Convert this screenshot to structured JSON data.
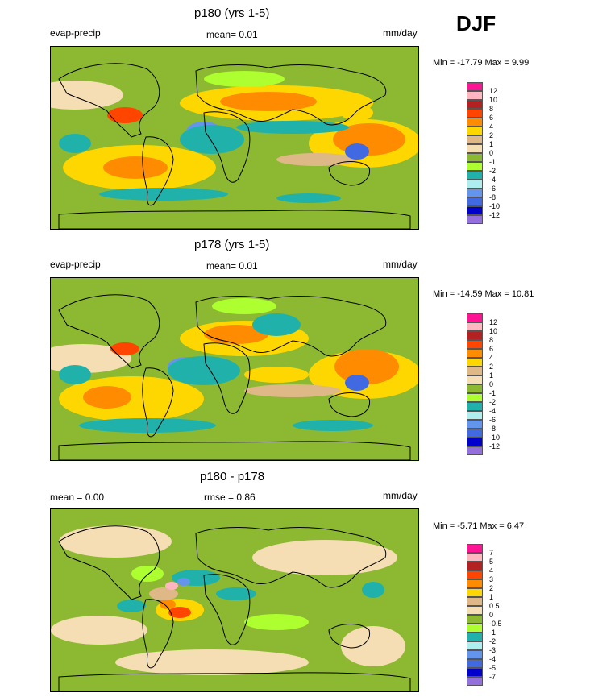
{
  "header": {
    "season": "DJF"
  },
  "colors": {
    "ocean_base": "#8DB832",
    "land_line": "#000000",
    "scale12": [
      "#FF1493",
      "#FFB6C1",
      "#B22222",
      "#FF4500",
      "#FF8C00",
      "#FFD700",
      "#DEB887",
      "#F5DEB3",
      "#8DB832",
      "#ADFF2F",
      "#20B2AA",
      "#AFEEEE",
      "#6495ED",
      "#4169E1",
      "#0000CD",
      "#9370DB"
    ]
  },
  "panels": [
    {
      "title": "p180 (yrs 1-5)",
      "left_label": "evap-precip",
      "mid_label": "mean=  0.01",
      "units": "mm/day",
      "minmax": "Min = -17.79 Max =   9.99",
      "legend_ticks": [
        "12",
        "10",
        "8",
        "6",
        "4",
        "2",
        "1",
        "0",
        "-1",
        "-2",
        "-4",
        "-6",
        "-8",
        "-10",
        "-12"
      ]
    },
    {
      "title": "p178 (yrs 1-5)",
      "left_label": "evap-precip",
      "mid_label": "mean=  0.01",
      "units": "mm/day",
      "minmax": "Min = -14.59 Max =  10.81",
      "legend_ticks": [
        "12",
        "10",
        "8",
        "6",
        "4",
        "2",
        "1",
        "0",
        "-1",
        "-2",
        "-4",
        "-6",
        "-8",
        "-10",
        "-12"
      ]
    },
    {
      "title": "p180 - p178",
      "left_label": "mean =   0.00",
      "mid_label": "rmse =   0.86",
      "units": "mm/day",
      "minmax": "Min =  -5.71 Max =   6.47",
      "legend_ticks": [
        "7",
        "5",
        "4",
        "3",
        "2",
        "1",
        "0.5",
        "0",
        "-0.5",
        "-1",
        "-2",
        "-3",
        "-4",
        "-5",
        "-7"
      ]
    }
  ],
  "chart_data": [
    {
      "type": "heatmap",
      "title": "p180 (yrs 1-5)",
      "variable": "evap-precip",
      "units": "mm/day",
      "mean": 0.01,
      "min": -17.79,
      "max": 9.99,
      "levels": [
        -12,
        -10,
        -8,
        -6,
        -4,
        -2,
        -1,
        0,
        1,
        2,
        4,
        6,
        8,
        10,
        12
      ],
      "season": "DJF"
    },
    {
      "type": "heatmap",
      "title": "p178 (yrs 1-5)",
      "variable": "evap-precip",
      "units": "mm/day",
      "mean": 0.01,
      "min": -14.59,
      "max": 10.81,
      "levels": [
        -12,
        -10,
        -8,
        -6,
        -4,
        -2,
        -1,
        0,
        1,
        2,
        4,
        6,
        8,
        10,
        12
      ],
      "season": "DJF"
    },
    {
      "type": "heatmap",
      "title": "p180 - p178",
      "units": "mm/day",
      "mean": 0.0,
      "rmse": 0.86,
      "min": -5.71,
      "max": 6.47,
      "levels": [
        -7,
        -5,
        -4,
        -3,
        -2,
        -1,
        -0.5,
        0,
        0.5,
        1,
        2,
        3,
        4,
        5,
        7
      ],
      "season": "DJF"
    }
  ]
}
